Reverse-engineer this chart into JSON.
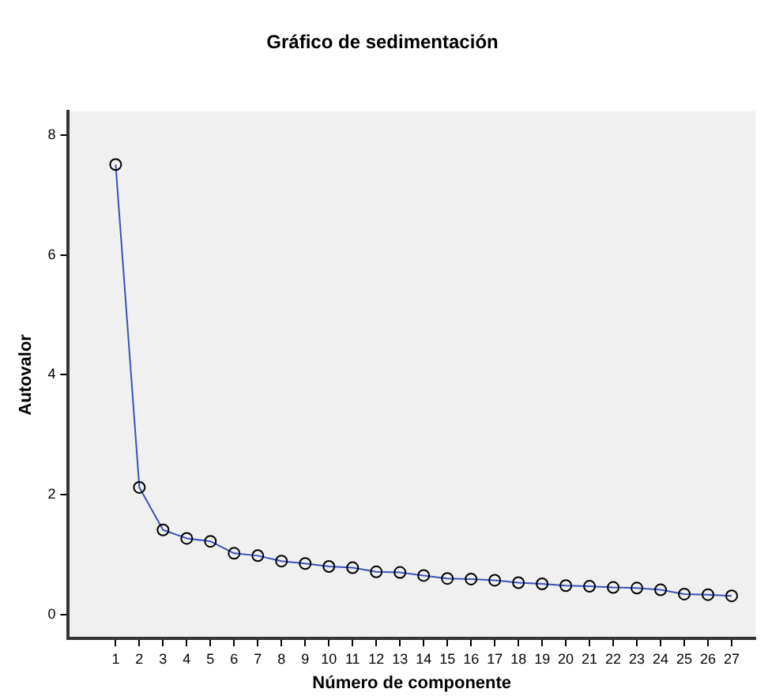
{
  "chart_data": {
    "type": "line",
    "title": "Gráfico de sedimentación",
    "xlabel": "Número de componente",
    "ylabel": "Autovalor",
    "x": [
      1,
      2,
      3,
      4,
      5,
      6,
      7,
      8,
      9,
      10,
      11,
      12,
      13,
      14,
      15,
      16,
      17,
      18,
      19,
      20,
      21,
      22,
      23,
      24,
      25,
      26,
      27
    ],
    "series": [
      {
        "color": "#3a52b8",
        "values": [
          7.51,
          2.12,
          1.41,
          1.27,
          1.22,
          1.02,
          0.98,
          0.89,
          0.85,
          0.8,
          0.78,
          0.71,
          0.7,
          0.65,
          0.6,
          0.59,
          0.57,
          0.53,
          0.51,
          0.48,
          0.47,
          0.45,
          0.44,
          0.41,
          0.34,
          0.33,
          0.31
        ]
      }
    ],
    "xlim": [
      -1,
      28
    ],
    "xticks": [
      1,
      2,
      3,
      4,
      5,
      6,
      7,
      8,
      9,
      10,
      11,
      12,
      13,
      14,
      15,
      16,
      17,
      18,
      19,
      20,
      21,
      22,
      23,
      24,
      25,
      26,
      27
    ],
    "ylim": [
      -0.4,
      8.4
    ],
    "yticks": [
      0,
      2,
      4,
      6,
      8
    ],
    "grid": false,
    "legend": false,
    "marker": "circle",
    "line_style": "solid"
  }
}
